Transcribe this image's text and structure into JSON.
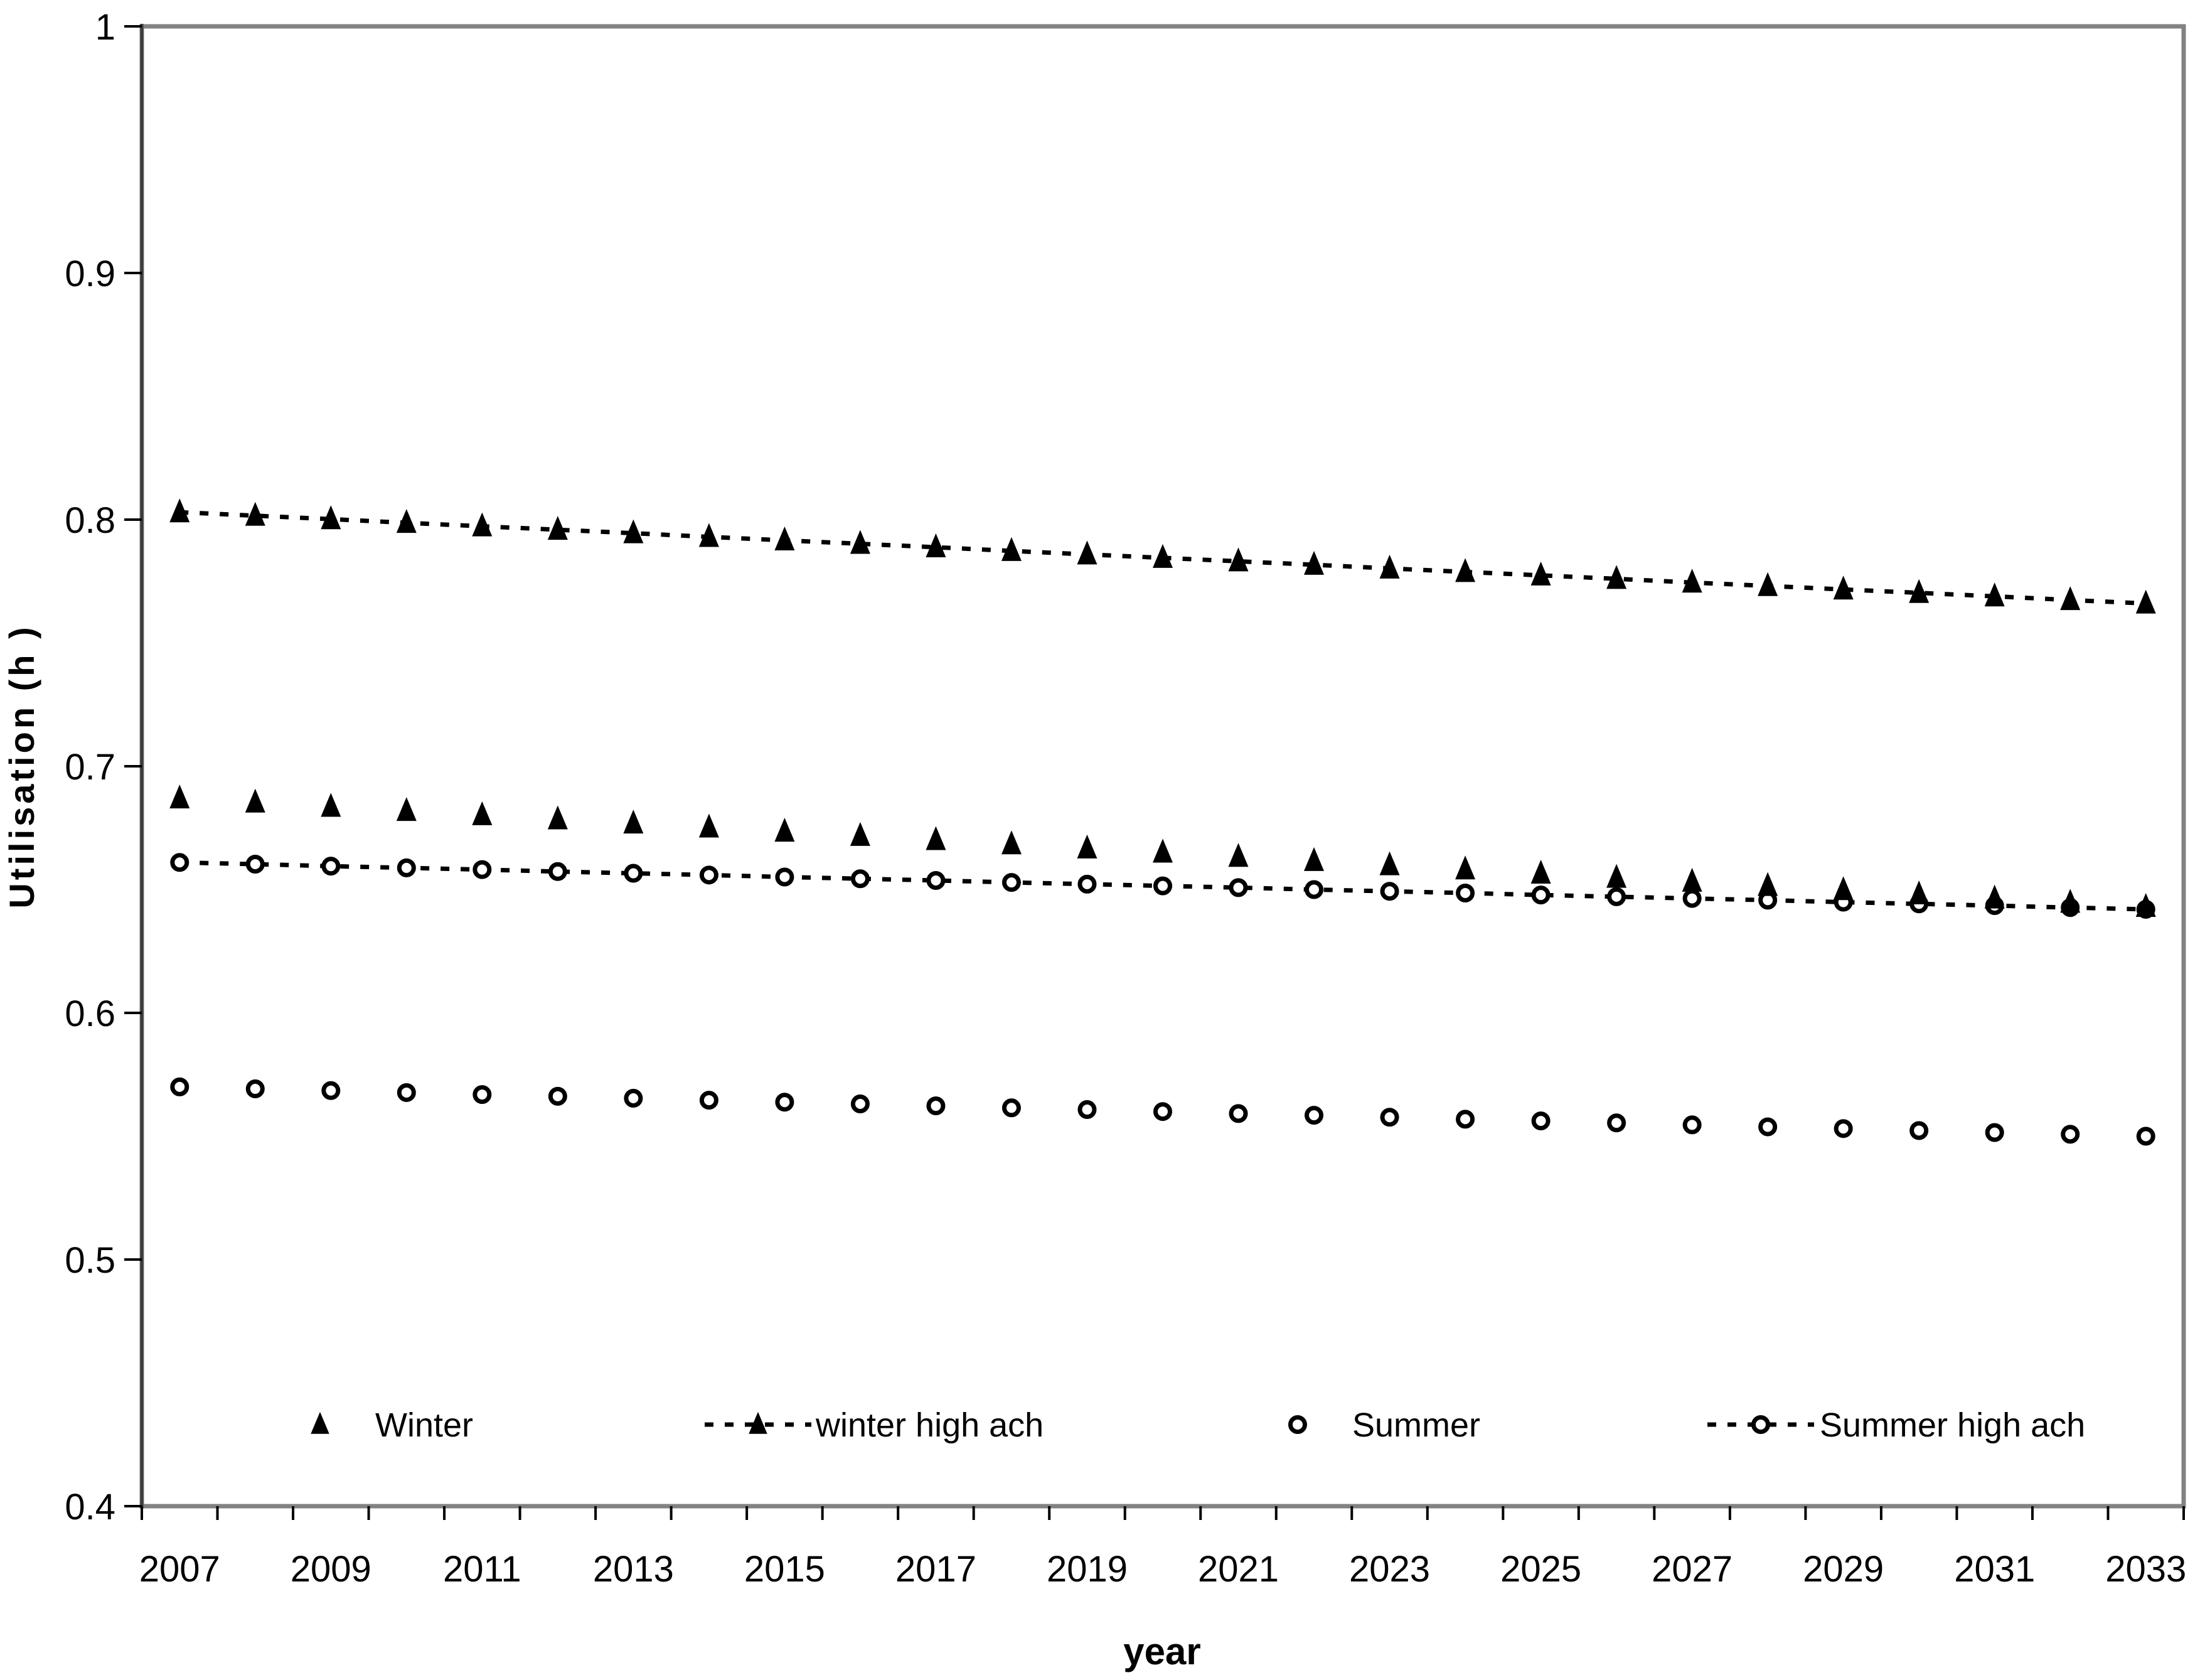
{
  "chart_data": {
    "type": "scatter",
    "title": "",
    "xlabel": "year",
    "ylabel": "Utilisation (h )",
    "x": [
      2007,
      2008,
      2009,
      2010,
      2011,
      2012,
      2013,
      2014,
      2015,
      2016,
      2017,
      2018,
      2019,
      2020,
      2021,
      2022,
      2023,
      2024,
      2025,
      2026,
      2027,
      2028,
      2029,
      2030,
      2031,
      2032,
      2033
    ],
    "x_tick_labels": [
      "2007",
      "2009",
      "2011",
      "2013",
      "2015",
      "2017",
      "2019",
      "2021",
      "2023",
      "2025",
      "2027",
      "2029",
      "2031",
      "2033"
    ],
    "y_ticks": [
      1,
      0.9,
      0.8,
      0.7,
      0.6,
      0.5,
      0.4
    ],
    "y_tick_labels": [
      "1",
      "0.9",
      "0.8",
      "0.7",
      "0.6",
      "0.5",
      "0.4"
    ],
    "ylim": [
      0.4,
      1
    ],
    "grid": false,
    "legend_position": "bottom-inside",
    "colors": {
      "foreground": "#000000",
      "plot_border": "#828282",
      "axis_line": "#3c3c3c",
      "background": "#ffffff"
    },
    "series": [
      {
        "name": "Winter",
        "marker": "filled-triangle",
        "line": "none",
        "values": [
          0.687,
          0.6853,
          0.6836,
          0.6819,
          0.6802,
          0.6785,
          0.6768,
          0.6752,
          0.6735,
          0.6718,
          0.6701,
          0.6684,
          0.6667,
          0.665,
          0.6633,
          0.6616,
          0.6599,
          0.6582,
          0.6565,
          0.6548,
          0.6532,
          0.6515,
          0.6498,
          0.6481,
          0.6464,
          0.6447,
          0.643
        ]
      },
      {
        "name": "winter high ach",
        "marker": "filled-triangle",
        "line": "dotted",
        "values": [
          0.803,
          0.8016,
          0.8002,
          0.7987,
          0.7973,
          0.7959,
          0.7945,
          0.793,
          0.7916,
          0.7902,
          0.7888,
          0.7873,
          0.7859,
          0.7845,
          0.7831,
          0.7817,
          0.7802,
          0.7788,
          0.7774,
          0.776,
          0.7745,
          0.7731,
          0.7717,
          0.7703,
          0.7689,
          0.7674,
          0.766
        ]
      },
      {
        "name": "Summer",
        "marker": "open-circle",
        "line": "none",
        "values": [
          0.57,
          0.5692,
          0.5685,
          0.5677,
          0.5669,
          0.5662,
          0.5654,
          0.5646,
          0.5638,
          0.5631,
          0.5623,
          0.5615,
          0.5608,
          0.56,
          0.5592,
          0.5585,
          0.5577,
          0.5569,
          0.5562,
          0.5554,
          0.5546,
          0.5538,
          0.5531,
          0.5523,
          0.5515,
          0.5508,
          0.55
        ]
      },
      {
        "name": "Summer high ach",
        "marker": "open-circle",
        "line": "dotted",
        "values": [
          0.661,
          0.6603,
          0.6595,
          0.6588,
          0.6581,
          0.6573,
          0.6566,
          0.6559,
          0.6551,
          0.6544,
          0.6537,
          0.6529,
          0.6522,
          0.6515,
          0.6508,
          0.65,
          0.6493,
          0.6486,
          0.6478,
          0.6471,
          0.6464,
          0.6457,
          0.6449,
          0.6442,
          0.6435,
          0.6427,
          0.642
        ]
      }
    ]
  }
}
